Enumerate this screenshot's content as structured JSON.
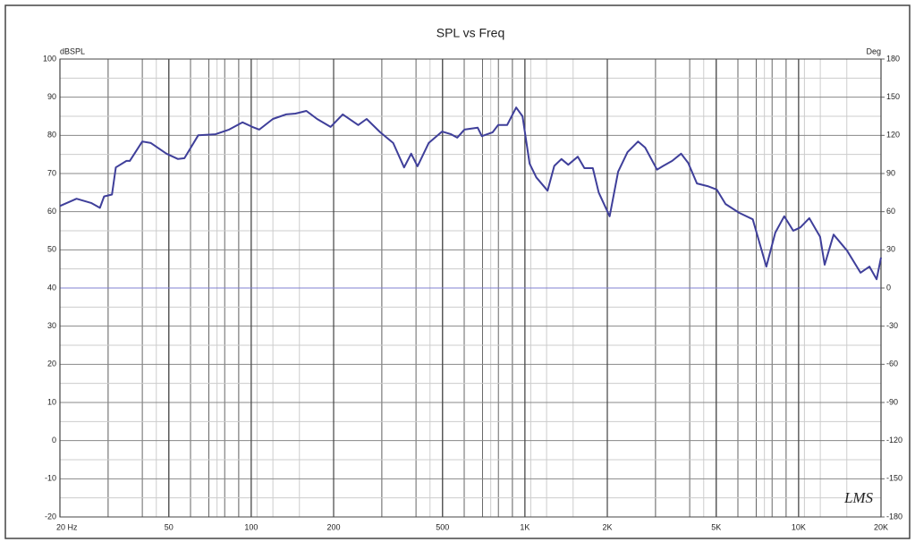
{
  "chart_data": {
    "type": "line",
    "title": "SPL vs Freq",
    "y_label": "dBSPL",
    "y2_label": "Deg",
    "annotation": "LMS",
    "log_x": true,
    "grid": true,
    "xminor": true,
    "xlim": [
      20,
      20000
    ],
    "xticks": [
      {
        "value": 20,
        "label": "20 Hz"
      },
      50,
      100,
      200,
      500,
      {
        "value": 1000,
        "label": "1K"
      },
      {
        "value": 2000,
        "label": "2K"
      },
      {
        "value": 5000,
        "label": "5K"
      },
      {
        "value": 10000,
        "label": "10K"
      },
      {
        "value": 20000,
        "label": "20K"
      }
    ],
    "ylim": [
      -20,
      100
    ],
    "yticks": [
      -20,
      -10,
      0,
      10,
      20,
      30,
      40,
      50,
      60,
      70,
      80,
      90,
      100
    ],
    "y2lim": [
      -180,
      180
    ],
    "y2ticks": [
      -180,
      -150,
      -120,
      -90,
      -60,
      -30,
      0,
      30,
      60,
      90,
      120,
      150,
      180
    ],
    "x": [
      20,
      23,
      26,
      28,
      29,
      31,
      32,
      35,
      36,
      40,
      43,
      49,
      54,
      57,
      64,
      74,
      83,
      93,
      101,
      107,
      120,
      134,
      145,
      159,
      174,
      195,
      216,
      246,
      264,
      296,
      330,
      362,
      384,
      405,
      445,
      498,
      537,
      566,
      601,
      672,
      696,
      762,
      798,
      861,
      929,
      980,
      1040,
      1100,
      1210,
      1280,
      1360,
      1440,
      1560,
      1650,
      1770,
      1860,
      2040,
      2190,
      2370,
      2590,
      2750,
      3040,
      3200,
      3450,
      3720,
      3950,
      4250,
      4650,
      5020,
      5410,
      6060,
      6800,
      7620,
      8220,
      8860,
      9560,
      10150,
      10940,
      11980,
      12450,
      13420,
      15030,
      16840,
      18150,
      19270,
      20000
    ],
    "series": [
      {
        "name": "SPL",
        "color": "#3f3f9a",
        "values": [
          61.5,
          63.4,
          62.3,
          61,
          64,
          64.5,
          71.6,
          73.3,
          73.3,
          78.4,
          78,
          75.2,
          73.8,
          74,
          80,
          80.3,
          81.5,
          83.4,
          82.2,
          81.5,
          84.3,
          85.5,
          85.7,
          86.4,
          84.3,
          82.2,
          85.5,
          82.7,
          84.3,
          80.8,
          78,
          71.6,
          75.2,
          71.9,
          78,
          81,
          80.3,
          79.4,
          81.5,
          82,
          79.8,
          80.8,
          82.7,
          82.7,
          87.3,
          85,
          72.6,
          69,
          65.5,
          72,
          73.8,
          72.3,
          74.4,
          71.4,
          71.4,
          65,
          58.8,
          70.5,
          75.6,
          78.4,
          76.8,
          71,
          72,
          73.3,
          75.2,
          72.8,
          67.4,
          66.7,
          65.8,
          62,
          59.7,
          58,
          45.6,
          54.5,
          58.8,
          55,
          55.9,
          58.3,
          53.4,
          46.1,
          54,
          49.8,
          44,
          45.6,
          42.3,
          48
        ]
      }
    ]
  }
}
